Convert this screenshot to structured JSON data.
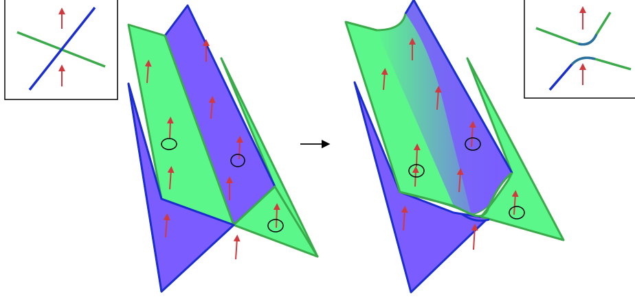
{
  "colors": {
    "green": "#5bf78a",
    "green_edge": "#3aaa4a",
    "blue": "#7a5cff",
    "blue_edge": "#1a2ecf",
    "arrow": "#d2393f",
    "ink": "#000000"
  },
  "icons": [
    "up-arrow-icon",
    "rotation-circle-icon",
    "right-arrow-icon"
  ],
  "panels": [
    {
      "id": "before",
      "description_shown": "crossing"
    },
    {
      "id": "after",
      "description_shown": "avoided-crossing"
    }
  ]
}
